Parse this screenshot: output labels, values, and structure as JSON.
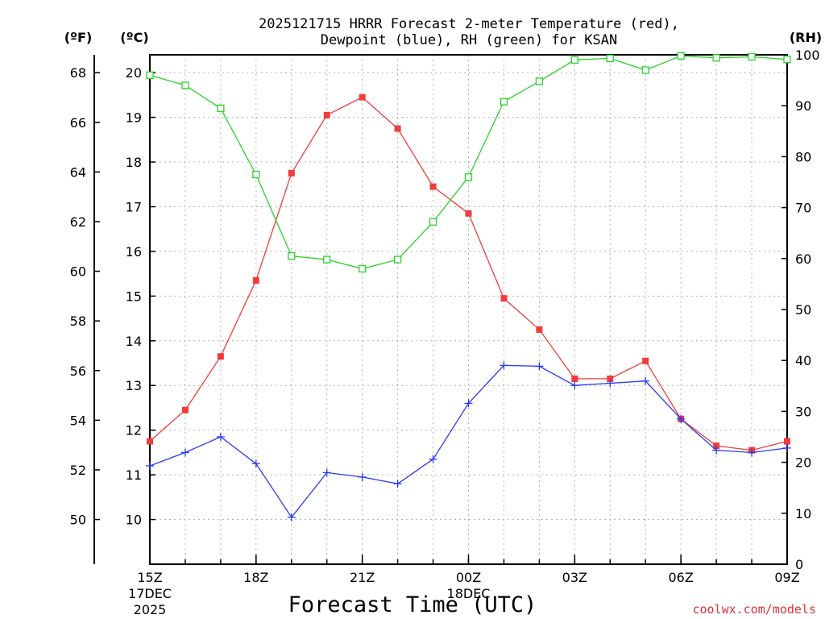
{
  "page": {
    "title_line1": "2025121715 HRRR Forecast 2-meter Temperature (red),",
    "title_line2": "Dewpoint (blue), RH (green) for KSAN",
    "credit": "coolwx.com/models"
  },
  "chart_data": {
    "type": "line",
    "title": "2025121715 HRRR Forecast 2-meter Temperature (red), Dewpoint (blue), RH (green) for KSAN",
    "xlabel": "Forecast Time (UTC)",
    "x_hours": [
      0,
      1,
      2,
      3,
      4,
      5,
      6,
      7,
      8,
      9,
      10,
      11,
      12,
      13,
      14,
      15,
      16,
      17,
      18
    ],
    "xlim": [
      0,
      18
    ],
    "x_ticks": [
      {
        "hour": 0,
        "label": "15Z",
        "sub1": "17DEC",
        "sub2": "2025"
      },
      {
        "hour": 3,
        "label": "18Z",
        "sub1": "",
        "sub2": ""
      },
      {
        "hour": 6,
        "label": "21Z",
        "sub1": "",
        "sub2": ""
      },
      {
        "hour": 9,
        "label": "00Z",
        "sub1": "18DEC",
        "sub2": ""
      },
      {
        "hour": 12,
        "label": "03Z",
        "sub1": "",
        "sub2": ""
      },
      {
        "hour": 15,
        "label": "06Z",
        "sub1": "",
        "sub2": ""
      },
      {
        "hour": 18,
        "label": "09Z",
        "sub1": "",
        "sub2": ""
      }
    ],
    "axes": {
      "fahrenheit": {
        "unit_label": "(ºF)",
        "ticks": [
          50,
          52,
          54,
          56,
          58,
          60,
          62,
          64,
          66,
          68
        ]
      },
      "celsius": {
        "unit_label": "(ºC)",
        "ylim": [
          9.0,
          20.4
        ],
        "ticks": [
          10,
          11,
          12,
          13,
          14,
          15,
          16,
          17,
          18,
          19,
          20
        ]
      },
      "rh": {
        "unit_label": "(RH)",
        "ylim": [
          0,
          100
        ],
        "ticks": [
          0,
          10,
          20,
          30,
          40,
          50,
          60,
          70,
          80,
          90,
          100
        ]
      }
    },
    "series": [
      {
        "name": "Temperature",
        "axis": "celsius",
        "color": "#f03c3c",
        "marker": "filled-square",
        "values": [
          11.75,
          12.45,
          13.65,
          15.35,
          17.75,
          19.05,
          19.45,
          18.75,
          17.45,
          16.85,
          14.95,
          14.25,
          13.15,
          13.15,
          13.55,
          12.25,
          11.65,
          11.55,
          11.75
        ]
      },
      {
        "name": "Dewpoint",
        "axis": "celsius",
        "color": "#2a3cf0",
        "marker": "plus",
        "values": [
          11.2,
          11.5,
          11.85,
          11.25,
          10.05,
          11.05,
          10.95,
          10.8,
          11.35,
          12.6,
          13.45,
          13.43,
          13.0,
          13.05,
          13.1,
          12.25,
          11.55,
          11.5,
          11.6
        ]
      },
      {
        "name": "RH",
        "axis": "rh",
        "color": "#2ad22a",
        "marker": "open-square",
        "values": [
          96,
          94,
          89.5,
          76.5,
          60.5,
          59.8,
          58,
          59.8,
          67.2,
          76,
          90.8,
          94.8,
          99,
          99.3,
          97,
          99.8,
          99.4,
          99.6,
          99.1
        ]
      }
    ]
  }
}
